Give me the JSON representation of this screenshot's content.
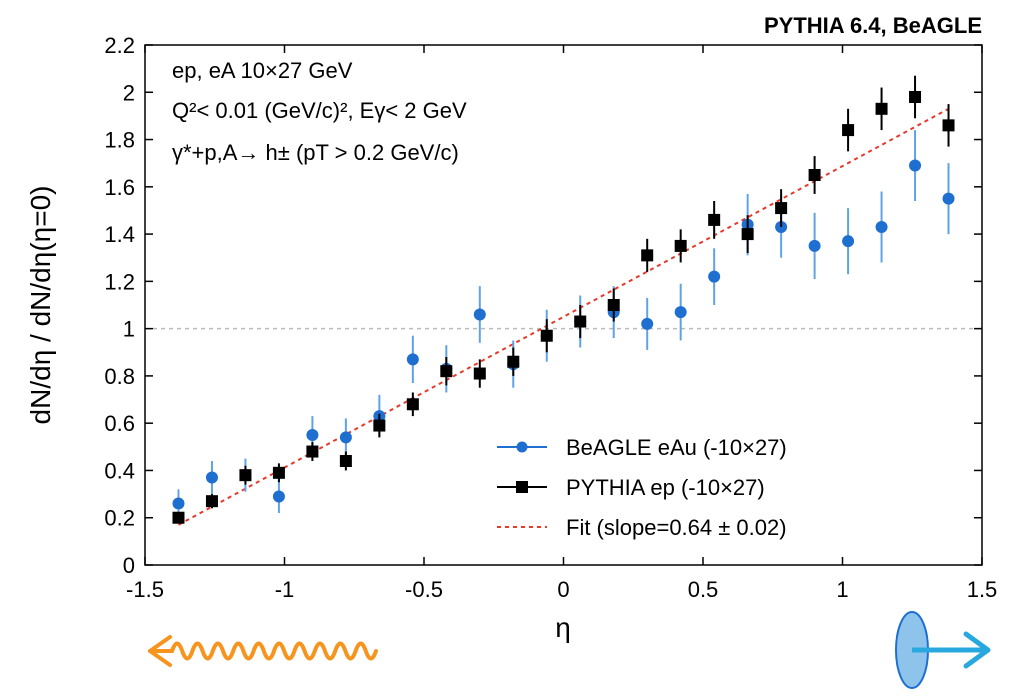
{
  "chart_data": {
    "type": "scatter",
    "title": "PYTHIA 6.4, BeAGLE",
    "xlabel": "η",
    "ylabel": "dN/dη / dN/dη(η=0)",
    "xlim": [
      -1.5,
      1.5
    ],
    "ylim": [
      0,
      2.2
    ],
    "xticks": [
      "-1.5",
      "-1",
      "-0.5",
      "0",
      "0.5",
      "1",
      "1.5"
    ],
    "yticks": [
      "0",
      "0.2",
      "0.4",
      "0.6",
      "0.8",
      "1",
      "1.2",
      "1.4",
      "1.6",
      "1.8",
      "2",
      "2.2"
    ],
    "reference_line_y": 1,
    "annotations": [
      "ep, eA 10×27 GeV",
      "Q²< 0.01 (GeV/c)², Eγ< 2 GeV",
      "γ*+p,A→ h± (pT > 0.2 GeV/c)"
    ],
    "series": [
      {
        "name": "BeAGLE eAu (-10×27)",
        "color": "#1f6fd1",
        "marker": "circle",
        "points": [
          {
            "x": -1.38,
            "y": 0.26,
            "err": 0.06
          },
          {
            "x": -1.26,
            "y": 0.37,
            "err": 0.07
          },
          {
            "x": -1.14,
            "y": 0.38,
            "err": 0.07
          },
          {
            "x": -1.02,
            "y": 0.29,
            "err": 0.07
          },
          {
            "x": -0.9,
            "y": 0.55,
            "err": 0.08
          },
          {
            "x": -0.78,
            "y": 0.54,
            "err": 0.08
          },
          {
            "x": -0.66,
            "y": 0.63,
            "err": 0.09
          },
          {
            "x": -0.54,
            "y": 0.87,
            "err": 0.1
          },
          {
            "x": -0.42,
            "y": 0.83,
            "err": 0.1
          },
          {
            "x": -0.3,
            "y": 1.06,
            "err": 0.12
          },
          {
            "x": -0.18,
            "y": 0.85,
            "err": 0.1
          },
          {
            "x": -0.06,
            "y": 0.97,
            "err": 0.11
          },
          {
            "x": 0.06,
            "y": 1.03,
            "err": 0.11
          },
          {
            "x": 0.18,
            "y": 1.07,
            "err": 0.11
          },
          {
            "x": 0.3,
            "y": 1.02,
            "err": 0.11
          },
          {
            "x": 0.42,
            "y": 1.07,
            "err": 0.12
          },
          {
            "x": 0.54,
            "y": 1.22,
            "err": 0.12
          },
          {
            "x": 0.66,
            "y": 1.44,
            "err": 0.13
          },
          {
            "x": 0.78,
            "y": 1.43,
            "err": 0.13
          },
          {
            "x": 0.9,
            "y": 1.35,
            "err": 0.14
          },
          {
            "x": 1.02,
            "y": 1.37,
            "err": 0.14
          },
          {
            "x": 1.14,
            "y": 1.43,
            "err": 0.15
          },
          {
            "x": 1.26,
            "y": 1.69,
            "err": 0.15
          },
          {
            "x": 1.38,
            "y": 1.55,
            "err": 0.15
          }
        ]
      },
      {
        "name": "PYTHIA ep (-10×27)",
        "color": "#000000",
        "marker": "square",
        "points": [
          {
            "x": -1.38,
            "y": 0.2,
            "err": 0.02
          },
          {
            "x": -1.26,
            "y": 0.27,
            "err": 0.03
          },
          {
            "x": -1.14,
            "y": 0.38,
            "err": 0.04
          },
          {
            "x": -1.02,
            "y": 0.39,
            "err": 0.04
          },
          {
            "x": -0.9,
            "y": 0.48,
            "err": 0.04
          },
          {
            "x": -0.78,
            "y": 0.44,
            "err": 0.04
          },
          {
            "x": -0.66,
            "y": 0.59,
            "err": 0.05
          },
          {
            "x": -0.54,
            "y": 0.68,
            "err": 0.05
          },
          {
            "x": -0.42,
            "y": 0.82,
            "err": 0.06
          },
          {
            "x": -0.3,
            "y": 0.81,
            "err": 0.06
          },
          {
            "x": -0.18,
            "y": 0.86,
            "err": 0.06
          },
          {
            "x": -0.06,
            "y": 0.97,
            "err": 0.07
          },
          {
            "x": 0.06,
            "y": 1.03,
            "err": 0.07
          },
          {
            "x": 0.18,
            "y": 1.1,
            "err": 0.07
          },
          {
            "x": 0.3,
            "y": 1.31,
            "err": 0.07
          },
          {
            "x": 0.42,
            "y": 1.35,
            "err": 0.07
          },
          {
            "x": 0.54,
            "y": 1.46,
            "err": 0.08
          },
          {
            "x": 0.66,
            "y": 1.4,
            "err": 0.08
          },
          {
            "x": 0.78,
            "y": 1.51,
            "err": 0.08
          },
          {
            "x": 0.9,
            "y": 1.65,
            "err": 0.08
          },
          {
            "x": 1.02,
            "y": 1.84,
            "err": 0.09
          },
          {
            "x": 1.14,
            "y": 1.93,
            "err": 0.09
          },
          {
            "x": 1.26,
            "y": 1.98,
            "err": 0.09
          },
          {
            "x": 1.38,
            "y": 1.86,
            "err": 0.09
          }
        ]
      }
    ],
    "fit": {
      "name": "Fit (slope=0.64 ± 0.02)",
      "color": "#e8382a",
      "x": [
        -1.38,
        1.38
      ],
      "y": [
        0.17,
        1.93
      ]
    },
    "legend": {
      "position": "bottom-right",
      "entries": [
        "BeAGLE eAu (-10×27)",
        "PYTHIA ep (-10×27)",
        "Fit (slope=0.64 ± 0.02)"
      ]
    },
    "decorations": {
      "photon_arrow_color": "#f7941d",
      "proton_arrow_color": "#29a8e0"
    }
  }
}
